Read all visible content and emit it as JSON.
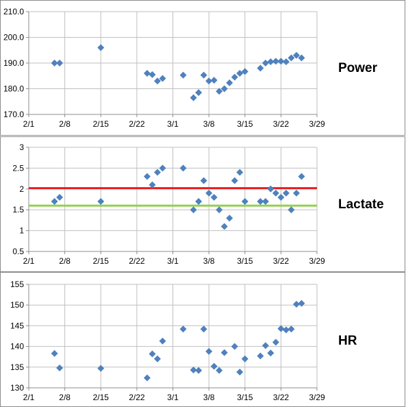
{
  "chart_data": [
    {
      "type": "scatter",
      "title": "Power",
      "x_tick_labels": [
        "2/1",
        "2/8",
        "2/15",
        "2/22",
        "3/1",
        "3/8",
        "3/15",
        "3/22",
        "3/29"
      ],
      "y_tick_labels": [
        "170.0",
        "180.0",
        "190.0",
        "200.0",
        "210.0"
      ],
      "ylim": [
        170,
        210
      ],
      "grid": true,
      "marker_color": "#4f81bd",
      "points": [
        {
          "x": "2/6",
          "y": 190.0
        },
        {
          "x": "2/7",
          "y": 190.0
        },
        {
          "x": "2/15",
          "y": 196.0
        },
        {
          "x": "2/24",
          "y": 186.0
        },
        {
          "x": "2/25",
          "y": 185.5
        },
        {
          "x": "2/26",
          "y": 183.0
        },
        {
          "x": "2/27",
          "y": 184.0
        },
        {
          "x": "3/3",
          "y": 185.3
        },
        {
          "x": "3/5",
          "y": 176.5
        },
        {
          "x": "3/6",
          "y": 178.5
        },
        {
          "x": "3/7",
          "y": 185.3
        },
        {
          "x": "3/8",
          "y": 183.0
        },
        {
          "x": "3/9",
          "y": 183.3
        },
        {
          "x": "3/10",
          "y": 179.0
        },
        {
          "x": "3/11",
          "y": 180.0
        },
        {
          "x": "3/12",
          "y": 182.3
        },
        {
          "x": "3/13",
          "y": 184.5
        },
        {
          "x": "3/14",
          "y": 186.0
        },
        {
          "x": "3/15",
          "y": 186.7
        },
        {
          "x": "3/18",
          "y": 188.0
        },
        {
          "x": "3/19",
          "y": 190.0
        },
        {
          "x": "3/20",
          "y": 190.5
        },
        {
          "x": "3/21",
          "y": 190.7
        },
        {
          "x": "3/22",
          "y": 190.7
        },
        {
          "x": "3/23",
          "y": 190.5
        },
        {
          "x": "3/24",
          "y": 192.0
        },
        {
          "x": "3/25",
          "y": 193.0
        },
        {
          "x": "3/26",
          "y": 192.0
        }
      ]
    },
    {
      "type": "scatter",
      "title": "Lactate",
      "x_tick_labels": [
        "2/1",
        "2/8",
        "2/15",
        "2/22",
        "3/1",
        "3/8",
        "3/15",
        "3/22",
        "3/29"
      ],
      "y_tick_labels": [
        "0.5",
        "1",
        "1.5",
        "2",
        "2.5",
        "3"
      ],
      "ylim": [
        0.5,
        3
      ],
      "grid": true,
      "marker_color": "#4f81bd",
      "reference_lines": [
        {
          "y": 2.02,
          "color": "#e81d1d"
        },
        {
          "y": 1.6,
          "color": "#92d050"
        }
      ],
      "points": [
        {
          "x": "2/6",
          "y": 1.7
        },
        {
          "x": "2/7",
          "y": 1.8
        },
        {
          "x": "2/15",
          "y": 1.7
        },
        {
          "x": "2/24",
          "y": 2.3
        },
        {
          "x": "2/25",
          "y": 2.1
        },
        {
          "x": "2/26",
          "y": 2.4
        },
        {
          "x": "2/27",
          "y": 2.5
        },
        {
          "x": "3/3",
          "y": 2.5
        },
        {
          "x": "3/5",
          "y": 1.5
        },
        {
          "x": "3/6",
          "y": 1.7
        },
        {
          "x": "3/7",
          "y": 2.2
        },
        {
          "x": "3/8",
          "y": 1.9
        },
        {
          "x": "3/9",
          "y": 1.8
        },
        {
          "x": "3/10",
          "y": 1.5
        },
        {
          "x": "3/11",
          "y": 1.1
        },
        {
          "x": "3/12",
          "y": 1.3
        },
        {
          "x": "3/13",
          "y": 2.2
        },
        {
          "x": "3/14",
          "y": 2.4
        },
        {
          "x": "3/15",
          "y": 1.7
        },
        {
          "x": "3/18",
          "y": 1.7
        },
        {
          "x": "3/19",
          "y": 1.7
        },
        {
          "x": "3/20",
          "y": 2.0
        },
        {
          "x": "3/21",
          "y": 1.9
        },
        {
          "x": "3/22",
          "y": 1.8
        },
        {
          "x": "3/23",
          "y": 1.9
        },
        {
          "x": "3/24",
          "y": 1.5
        },
        {
          "x": "3/25",
          "y": 1.9
        },
        {
          "x": "3/26",
          "y": 2.3
        }
      ]
    },
    {
      "type": "scatter",
      "title": "HR",
      "x_tick_labels": [
        "2/1",
        "2/8",
        "2/15",
        "2/22",
        "3/1",
        "3/8",
        "3/15",
        "3/22",
        "3/29"
      ],
      "y_tick_labels": [
        "130",
        "135",
        "140",
        "145",
        "150",
        "155"
      ],
      "ylim": [
        130,
        155
      ],
      "grid": true,
      "marker_color": "#4f81bd",
      "points": [
        {
          "x": "2/6",
          "y": 138.3
        },
        {
          "x": "2/7",
          "y": 134.8
        },
        {
          "x": "2/15",
          "y": 134.7
        },
        {
          "x": "2/24",
          "y": 132.4
        },
        {
          "x": "2/25",
          "y": 138.2
        },
        {
          "x": "2/26",
          "y": 137.0
        },
        {
          "x": "2/27",
          "y": 141.3
        },
        {
          "x": "3/3",
          "y": 144.2
        },
        {
          "x": "3/5",
          "y": 134.3
        },
        {
          "x": "3/6",
          "y": 134.2
        },
        {
          "x": "3/7",
          "y": 144.2
        },
        {
          "x": "3/8",
          "y": 138.8
        },
        {
          "x": "3/9",
          "y": 135.2
        },
        {
          "x": "3/10",
          "y": 134.2
        },
        {
          "x": "3/11",
          "y": 138.5
        },
        {
          "x": "3/13",
          "y": 140.0
        },
        {
          "x": "3/14",
          "y": 133.8
        },
        {
          "x": "3/15",
          "y": 137.0
        },
        {
          "x": "3/18",
          "y": 137.7
        },
        {
          "x": "3/19",
          "y": 140.2
        },
        {
          "x": "3/20",
          "y": 138.4
        },
        {
          "x": "3/21",
          "y": 141.0
        },
        {
          "x": "3/22",
          "y": 144.3
        },
        {
          "x": "3/23",
          "y": 144.0
        },
        {
          "x": "3/24",
          "y": 144.2
        },
        {
          "x": "3/25",
          "y": 150.2
        },
        {
          "x": "3/26",
          "y": 150.4
        }
      ]
    }
  ]
}
